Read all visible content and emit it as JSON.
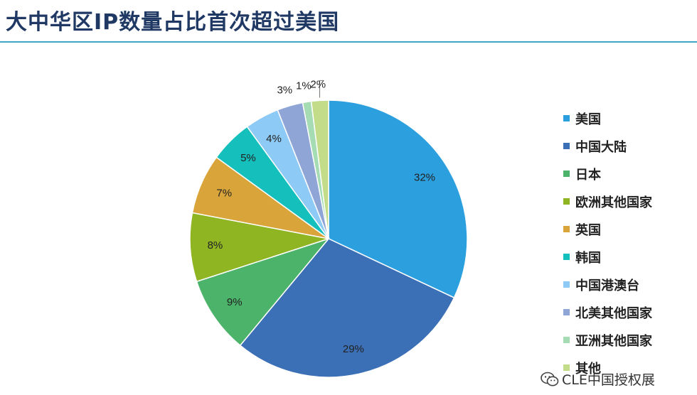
{
  "page": {
    "title": "大中华区IP数量占比首次超过美国",
    "watermark": "CLE中国授权展",
    "watermark_icon": "wechat-icon",
    "rule_color": "#3fa7c4"
  },
  "chart_data": {
    "type": "pie",
    "title": "大中华区IP数量占比首次超过美国",
    "start_angle_deg": 0,
    "direction": "clockwise",
    "legend_position": "right",
    "slices": [
      {
        "label": "美国",
        "value": 32,
        "display": "32%",
        "color": "#2c9fdf"
      },
      {
        "label": "中国大陆",
        "value": 29,
        "display": "29%",
        "color": "#3b6fb6"
      },
      {
        "label": "日本",
        "value": 9,
        "display": "9%",
        "color": "#4cb36a"
      },
      {
        "label": "欧洲其他国家",
        "value": 8,
        "display": "8%",
        "color": "#8fb523"
      },
      {
        "label": "英国",
        "value": 7,
        "display": "7%",
        "color": "#d9a43a"
      },
      {
        "label": "韩国",
        "value": 5,
        "display": "5%",
        "color": "#15c0bc"
      },
      {
        "label": "中国港澳台",
        "value": 4,
        "display": "4%",
        "color": "#8dcaf6"
      },
      {
        "label": "北美其他国家",
        "value": 3,
        "display": "3%",
        "color": "#8fa5d6"
      },
      {
        "label": "亚洲其他国家",
        "value": 1,
        "display": "1%",
        "color": "#a6dcb4"
      },
      {
        "label": "其他",
        "value": 2,
        "display": "2%",
        "color": "#c3dc8a"
      }
    ]
  }
}
